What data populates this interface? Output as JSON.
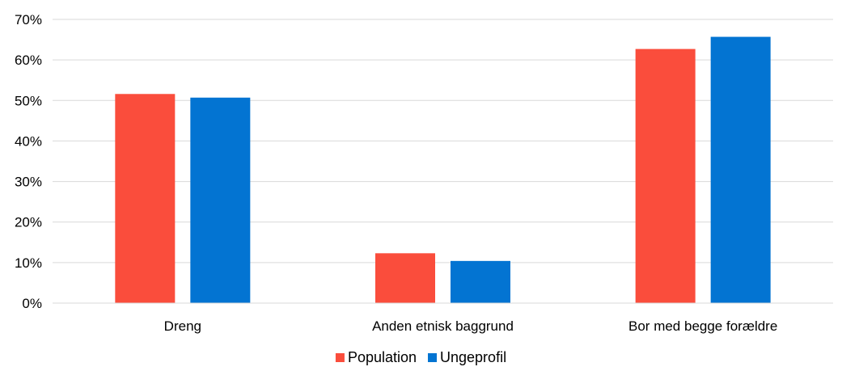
{
  "chart_data": {
    "type": "bar",
    "title": "",
    "xlabel": "",
    "ylabel": "",
    "categories": [
      "Dreng",
      "Anden etnisk baggrund",
      "Bor med begge forældre"
    ],
    "series": [
      {
        "name": "Population",
        "color": "#fa4d3c",
        "values": [
          0.516,
          0.123,
          0.627
        ]
      },
      {
        "name": "Ungeprofil",
        "color": "#0374d2",
        "values": [
          0.507,
          0.104,
          0.657
        ]
      }
    ],
    "ylim": [
      0,
      0.7
    ],
    "yticks": [
      0,
      0.1,
      0.2,
      0.3,
      0.4,
      0.5,
      0.6,
      0.7
    ],
    "ytick_labels": [
      "0%",
      "10%",
      "20%",
      "30%",
      "40%",
      "50%",
      "60%",
      "70%"
    ],
    "grid": true,
    "legend_position": "bottom-center"
  }
}
